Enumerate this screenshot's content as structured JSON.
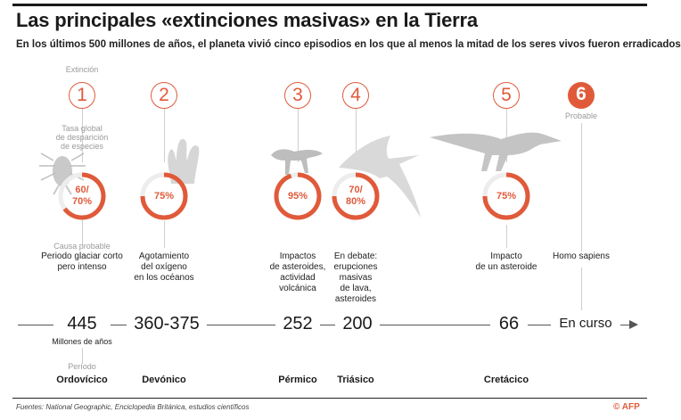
{
  "header": {
    "title": "Las principales «extinciones masivas» en la Tierra",
    "subtitle": "En los últimos 500 millones de años, el planeta vivió cinco episodios en los que al menos la mitad de los seres vivos fueron erradicados"
  },
  "labels": {
    "extinction": "Extinción",
    "rate": "Tasa global\nde desparición\nde especies",
    "cause": "Causa probable",
    "probable": "Probable",
    "millions": "Millones de años",
    "period": "Período"
  },
  "events": [
    {
      "number": "1",
      "rate_label": "60/\n70%",
      "rate_fraction": 0.65,
      "cause": "Periodo glaciar corto\npero intenso",
      "year": "445",
      "period": "Ordovícico"
    },
    {
      "number": "2",
      "rate_label": "75%",
      "rate_fraction": 0.75,
      "cause": "Agotamiento\ndel oxígeno\nen los océanos",
      "year": "360-375",
      "period": "Devónico"
    },
    {
      "number": "3",
      "rate_label": "95%",
      "rate_fraction": 0.95,
      "cause": "Impactos\nde asteroides,\nactividad\nvolcánica",
      "year": "252",
      "period": "Pérmico"
    },
    {
      "number": "4",
      "rate_label": "70/\n80%",
      "rate_fraction": 0.75,
      "cause": "En debate:\nerupciones\nmasivas\nde lava,\nasteroides",
      "year": "200",
      "period": "Triásico"
    },
    {
      "number": "5",
      "rate_label": "75%",
      "rate_fraction": 0.75,
      "cause": "Impacto\nde un asteroide",
      "year": "66",
      "period": "Cretácico"
    },
    {
      "number": "6",
      "rate_label": "",
      "cause": "Homo sapiens",
      "year": "En curso",
      "period": ""
    }
  ],
  "footer": {
    "source": "Fuentes: National Geographic, Enciclopedia Británica, estudios científicos",
    "logo": "© AFP"
  },
  "colors": {
    "accent": "#e05a3a",
    "gauge_track": "#ededed",
    "silhouette": "#cfcfcf"
  }
}
